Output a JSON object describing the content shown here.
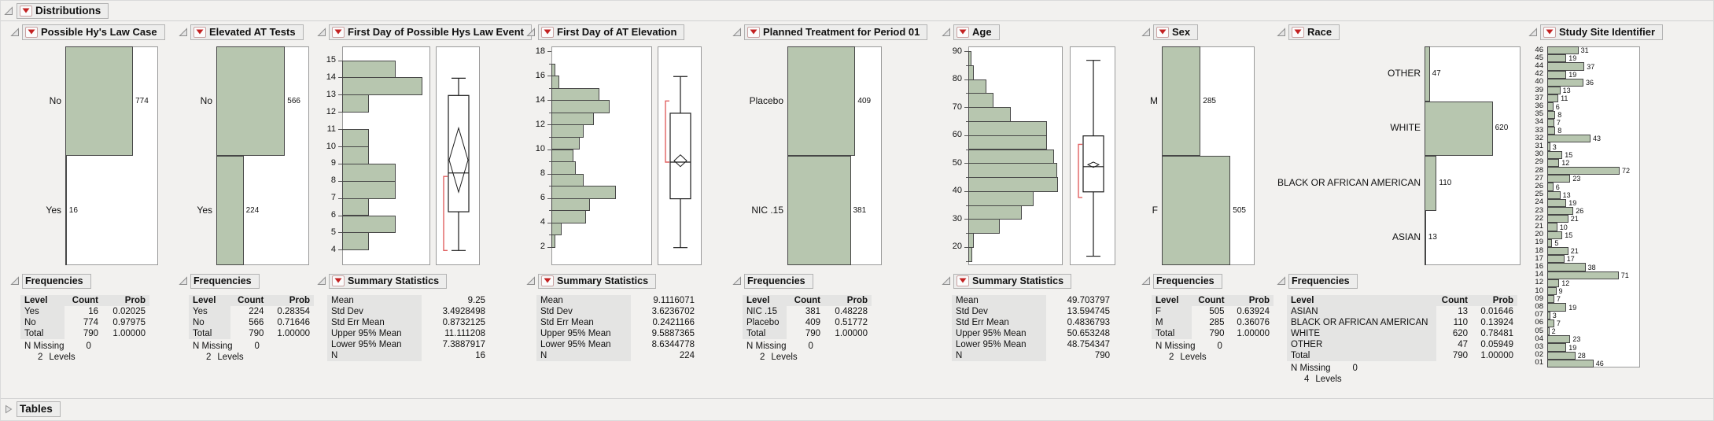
{
  "root": {
    "title": "Distributions"
  },
  "footer": {
    "title": "Tables"
  },
  "colors": {
    "bar_fill": "#b7c6af",
    "bar_border": "#474747",
    "accent_red": "#c32222",
    "bracket_red": "#e06060",
    "strip_bg": "#ededec",
    "table_label_bg": "#e4e4e3"
  },
  "panels": [
    {
      "title": "Possible Hy's Law Case",
      "section": {
        "title": "Frequencies",
        "has_menu": false,
        "columns": [
          "Level",
          "Count",
          "Prob"
        ],
        "rows": [
          [
            "Yes",
            "16",
            "0.02025"
          ],
          [
            "No",
            "774",
            "0.97975"
          ],
          [
            "Total",
            "790",
            "1.00000"
          ]
        ],
        "n_missing_label": "N Missing",
        "n_missing": "0",
        "levels_count": "2",
        "levels_label": "Levels"
      }
    },
    {
      "title": "Elevated AT Tests",
      "section": {
        "title": "Frequencies",
        "has_menu": false,
        "columns": [
          "Level",
          "Count",
          "Prob"
        ],
        "rows": [
          [
            "Yes",
            "224",
            "0.28354"
          ],
          [
            "No",
            "566",
            "0.71646"
          ],
          [
            "Total",
            "790",
            "1.00000"
          ]
        ],
        "n_missing_label": "N Missing",
        "n_missing": "0",
        "levels_count": "2",
        "levels_label": "Levels"
      }
    },
    {
      "title": "First Day of Possible Hys Law Event",
      "section": {
        "title": "Summary Statistics",
        "has_menu": true,
        "stats": [
          [
            "Mean",
            "9.25"
          ],
          [
            "Std Dev",
            "3.4928498"
          ],
          [
            "Std Err Mean",
            "0.8732125"
          ],
          [
            "Upper 95% Mean",
            "11.111208"
          ],
          [
            "Lower 95% Mean",
            "7.3887917"
          ],
          [
            "N",
            "16"
          ]
        ]
      }
    },
    {
      "title": "First Day of AT Elevation",
      "section": {
        "title": "Summary Statistics",
        "has_menu": true,
        "stats": [
          [
            "Mean",
            "9.1116071"
          ],
          [
            "Std Dev",
            "3.6236702"
          ],
          [
            "Std Err Mean",
            "0.2421166"
          ],
          [
            "Upper 95% Mean",
            "9.5887365"
          ],
          [
            "Lower 95% Mean",
            "8.6344778"
          ],
          [
            "N",
            "224"
          ]
        ]
      }
    },
    {
      "title": "Planned Treatment for Period 01",
      "section": {
        "title": "Frequencies",
        "has_menu": false,
        "columns": [
          "Level",
          "Count",
          "Prob"
        ],
        "rows": [
          [
            "NIC .15",
            "381",
            "0.48228"
          ],
          [
            "Placebo",
            "409",
            "0.51772"
          ],
          [
            "Total",
            "790",
            "1.00000"
          ]
        ],
        "n_missing_label": "N Missing",
        "n_missing": "0",
        "levels_count": "2",
        "levels_label": "Levels"
      }
    },
    {
      "title": "Age",
      "section": {
        "title": "Summary Statistics",
        "has_menu": true,
        "stats": [
          [
            "Mean",
            "49.703797"
          ],
          [
            "Std Dev",
            "13.594745"
          ],
          [
            "Std Err Mean",
            "0.4836793"
          ],
          [
            "Upper 95% Mean",
            "50.653248"
          ],
          [
            "Lower 95% Mean",
            "48.754347"
          ],
          [
            "N",
            "790"
          ]
        ]
      }
    },
    {
      "title": "Sex",
      "section": {
        "title": "Frequencies",
        "has_menu": false,
        "columns": [
          "Level",
          "Count",
          "Prob"
        ],
        "rows": [
          [
            "F",
            "505",
            "0.63924"
          ],
          [
            "M",
            "285",
            "0.36076"
          ],
          [
            "Total",
            "790",
            "1.00000"
          ]
        ],
        "n_missing_label": "N Missing",
        "n_missing": "0",
        "levels_count": "2",
        "levels_label": "Levels"
      }
    },
    {
      "title": "Race",
      "section": {
        "title": "Frequencies",
        "has_menu": false,
        "columns": [
          "Level",
          "Count",
          "Prob"
        ],
        "rows": [
          [
            "ASIAN",
            "13",
            "0.01646"
          ],
          [
            "BLACK OR AFRICAN AMERICAN",
            "110",
            "0.13924"
          ],
          [
            "WHITE",
            "620",
            "0.78481"
          ],
          [
            "OTHER",
            "47",
            "0.05949"
          ],
          [
            "Total",
            "790",
            "1.00000"
          ]
        ],
        "n_missing_label": "N Missing",
        "n_missing": "0",
        "levels_count": "4",
        "levels_label": "Levels"
      }
    },
    {
      "title": "Study Site Identifier",
      "section": null
    }
  ],
  "chart_data": [
    {
      "type": "bar",
      "variant": "mosaic",
      "title": "Possible Hy's Law Case",
      "categories": [
        "No",
        "Yes"
      ],
      "values": [
        774,
        16
      ]
    },
    {
      "type": "bar",
      "variant": "mosaic",
      "title": "Elevated AT Tests",
      "categories": [
        "No",
        "Yes"
      ],
      "values": [
        566,
        224
      ]
    },
    {
      "type": "histogram",
      "title": "First Day of Possible Hys Law Event",
      "ylim": [
        3.1,
        15.8
      ],
      "tick_values": [
        4,
        5,
        6,
        7,
        8,
        9,
        10,
        11,
        12,
        13,
        14,
        15
      ],
      "tick_labels": [
        "4",
        "5",
        "6",
        "7",
        "8",
        "9",
        "10",
        "11",
        "12",
        "13",
        "14",
        "15"
      ],
      "minor_ticks": [],
      "bin_width": 1,
      "bin_start": [
        4,
        5,
        6,
        7,
        8,
        9,
        10,
        11,
        12,
        13,
        14
      ],
      "counts": [
        1,
        2,
        1,
        2,
        2,
        1,
        1,
        0,
        1,
        3,
        2
      ],
      "box": {
        "min": 4,
        "q1": 6.25,
        "median": 8.5,
        "q3": 13,
        "max": 14,
        "mean": 9.25,
        "ci_low": 7.3887917,
        "ci_high": 11.111208,
        "bracket": [
          4,
          8.3
        ]
      }
    },
    {
      "type": "histogram",
      "title": "First Day of AT Elevation",
      "ylim": [
        0.5,
        18.4
      ],
      "tick_values": [
        2,
        4,
        6,
        8,
        10,
        12,
        14,
        16,
        18
      ],
      "tick_labels": [
        "2",
        "4",
        "6",
        "8",
        "10",
        "12",
        "14",
        "16",
        "18"
      ],
      "minor_ticks": [
        3,
        5,
        7,
        9,
        11,
        13,
        15,
        17
      ],
      "bin_width": 1,
      "bin_start": [
        2,
        3,
        4,
        5,
        6,
        7,
        8,
        9,
        10,
        11,
        12,
        13,
        14,
        15,
        16
      ],
      "counts": [
        2,
        5,
        17,
        19,
        32,
        16,
        12,
        11,
        14,
        16,
        21,
        29,
        24,
        4,
        2
      ],
      "box": {
        "min": 2,
        "q1": 6,
        "median": 9,
        "q3": 13,
        "max": 16,
        "mean": 9.1116071,
        "ci_low": 8.6344778,
        "ci_high": 9.5887365,
        "bracket": [
          9,
          14
        ]
      }
    },
    {
      "type": "bar",
      "variant": "mosaic",
      "title": "Planned Treatment for Period 01",
      "categories": [
        "Placebo",
        "NIC .15"
      ],
      "values": [
        409,
        381
      ]
    },
    {
      "type": "histogram",
      "title": "Age",
      "ylim": [
        13.5,
        91.7
      ],
      "tick_values": [
        20,
        30,
        40,
        50,
        60,
        70,
        80,
        90
      ],
      "tick_labels": [
        "20",
        "30",
        "40",
        "50",
        "60",
        "70",
        "80",
        "90"
      ],
      "minor_ticks": [
        15,
        25,
        35,
        45,
        55,
        65,
        75,
        85
      ],
      "bin_width": 5,
      "bin_start": [
        15,
        20,
        25,
        30,
        35,
        40,
        45,
        50,
        55,
        60,
        65,
        70,
        75,
        80,
        85
      ],
      "counts": [
        5,
        6,
        37,
        63,
        76,
        105,
        104,
        100,
        92,
        92,
        50,
        29,
        21,
        6,
        4
      ],
      "box": {
        "min": 17,
        "q1": 40,
        "median": 49,
        "q3": 60,
        "max": 87,
        "mean": 49.703797,
        "ci_low": 48.754347,
        "ci_high": 50.653248,
        "bracket": [
          38,
          57
        ]
      }
    },
    {
      "type": "bar",
      "variant": "mosaic",
      "title": "Sex",
      "categories": [
        "M",
        "F"
      ],
      "values": [
        285,
        505
      ]
    },
    {
      "type": "bar",
      "variant": "mosaic",
      "title": "Race",
      "categories": [
        "OTHER",
        "WHITE",
        "BLACK OR AFRICAN AMERICAN",
        "ASIAN"
      ],
      "values": [
        47,
        620,
        110,
        13
      ]
    },
    {
      "type": "bar",
      "variant": "mosaic-many",
      "title": "Study Site Identifier",
      "categories": [
        "46",
        "45",
        "44",
        "42",
        "40",
        "39",
        "37",
        "36",
        "35",
        "34",
        "33",
        "32",
        "31",
        "30",
        "29",
        "28",
        "27",
        "26",
        "25",
        "24",
        "23",
        "22",
        "21",
        "20",
        "19",
        "18",
        "17",
        "16",
        "14",
        "12",
        "10",
        "09",
        "08",
        "07",
        "06",
        "05",
        "04",
        "03",
        "02",
        "01"
      ],
      "values": [
        31,
        19,
        37,
        19,
        36,
        13,
        11,
        6,
        8,
        7,
        8,
        43,
        3,
        15,
        12,
        72,
        23,
        6,
        13,
        19,
        26,
        21,
        10,
        15,
        5,
        21,
        17,
        38,
        71,
        12,
        9,
        7,
        19,
        3,
        7,
        2,
        23,
        19,
        28,
        46
      ]
    }
  ]
}
